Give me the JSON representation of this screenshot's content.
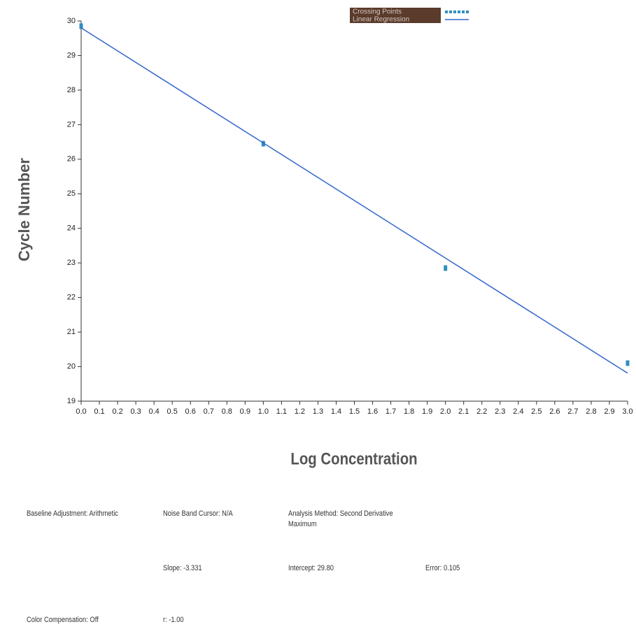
{
  "chart_data": {
    "type": "scatter",
    "x_label": "Log Concentration",
    "y_label": "Cycle Number",
    "xlim": [
      0,
      3
    ],
    "ylim": [
      19,
      30
    ],
    "xticks": [
      {
        "value": 0,
        "label": "0.0"
      },
      {
        "value": 0.1,
        "label": "0.1"
      },
      {
        "value": 0.2,
        "label": "0.2"
      },
      {
        "value": 0.3,
        "label": "0.3"
      },
      {
        "value": 0.4,
        "label": "0.4"
      },
      {
        "value": 0.5,
        "label": "0.5"
      },
      {
        "value": 0.6,
        "label": "0.6"
      },
      {
        "value": 0.7,
        "label": "0.7"
      },
      {
        "value": 0.8,
        "label": "0.8"
      },
      {
        "value": 0.9,
        "label": "0.9"
      },
      {
        "value": 1,
        "label": "1.0"
      },
      {
        "value": 1.1,
        "label": "1.1"
      },
      {
        "value": 1.2,
        "label": "1.2"
      },
      {
        "value": 1.3,
        "label": "1.3"
      },
      {
        "value": 1.4,
        "label": "1.4"
      },
      {
        "value": 1.5,
        "label": "1.5"
      },
      {
        "value": 1.6,
        "label": "1.6"
      },
      {
        "value": 1.7,
        "label": "1.7"
      },
      {
        "value": 1.8,
        "label": "1.8"
      },
      {
        "value": 1.9,
        "label": "1.9"
      },
      {
        "value": 2,
        "label": "2.0"
      },
      {
        "value": 2.1,
        "label": "2.1"
      },
      {
        "value": 2.2,
        "label": "2.2"
      },
      {
        "value": 2.3,
        "label": "2.3"
      },
      {
        "value": 2.4,
        "label": "2.4"
      },
      {
        "value": 2.5,
        "label": "2.5"
      },
      {
        "value": 2.6,
        "label": "2.6"
      },
      {
        "value": 2.7,
        "label": "2.7"
      },
      {
        "value": 2.8,
        "label": "2.8"
      },
      {
        "value": 2.9,
        "label": "2.9"
      },
      {
        "value": 3,
        "label": "3.0"
      }
    ],
    "yticks": [
      19,
      20,
      21,
      22,
      23,
      24,
      25,
      26,
      27,
      28,
      29,
      30
    ],
    "series": [
      {
        "name": "Crossing Points",
        "type": "scatter",
        "color": "#2f8fc0",
        "x": [
          0,
          1,
          2,
          3
        ],
        "values": [
          29.85,
          26.45,
          22.85,
          20.1
        ]
      },
      {
        "name": "Linear Regression",
        "type": "line",
        "color": "#3366cc",
        "x": [
          0,
          3
        ],
        "values": [
          29.8,
          19.81
        ]
      }
    ]
  },
  "info": {
    "baseline": "Baseline Adjustment: Arithmetic",
    "noise": "Noise Band Cursor: N/A",
    "method": "Analysis Method: Second Derivative Maximum",
    "slope": "Slope: -3.331",
    "intercept": "Intercept: 29.80",
    "error": "Error: 0.105",
    "color_comp": "Color Compensation: Off",
    "r": "r: -1.00"
  }
}
